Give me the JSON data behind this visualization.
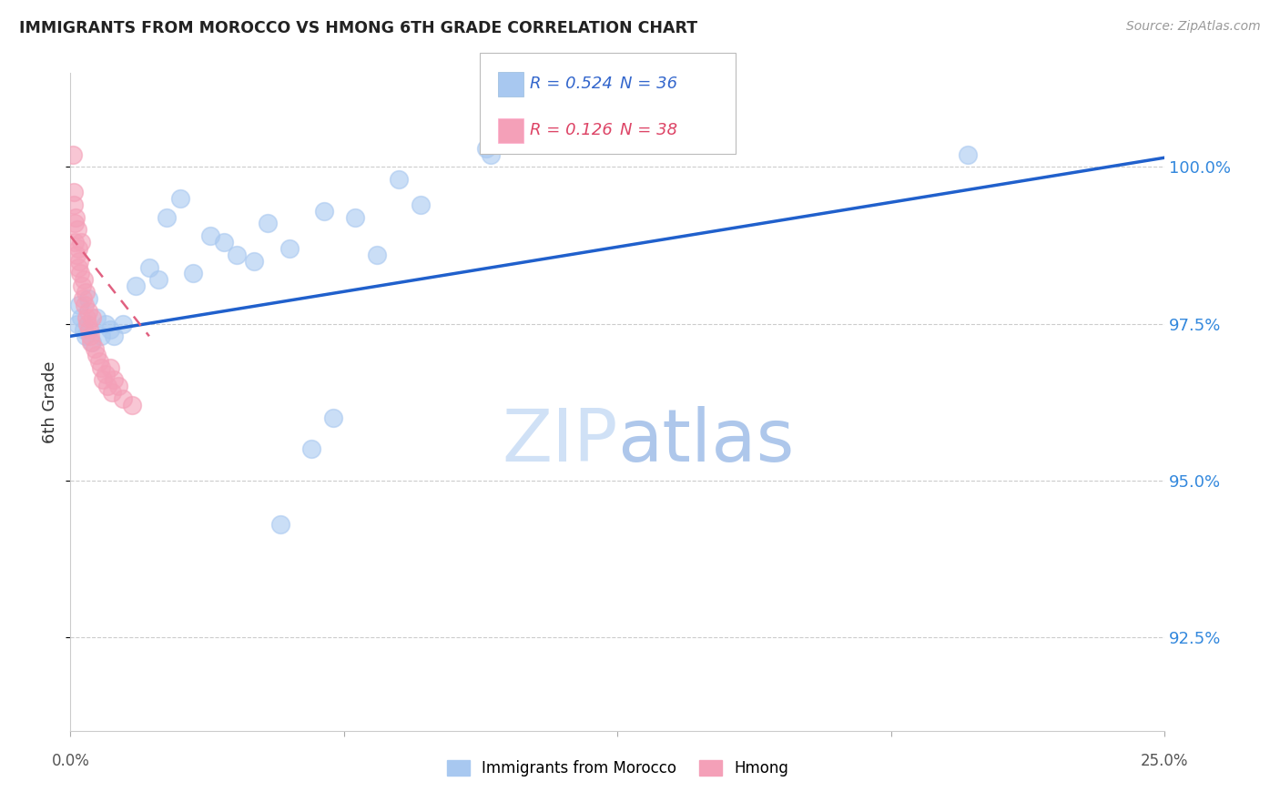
{
  "title": "IMMIGRANTS FROM MOROCCO VS HMONG 6TH GRADE CORRELATION CHART",
  "source": "Source: ZipAtlas.com",
  "ylabel": "6th Grade",
  "xlim": [
    0.0,
    25.0
  ],
  "ylim": [
    91.0,
    101.5
  ],
  "yticks": [
    92.5,
    95.0,
    97.5,
    100.0
  ],
  "ytick_labels": [
    "92.5%",
    "95.0%",
    "97.5%",
    "100.0%"
  ],
  "R_morocco": 0.524,
  "N_morocco": 36,
  "R_hmong": 0.126,
  "N_hmong": 38,
  "color_morocco": "#A8C8F0",
  "color_hmong": "#F4A0B8",
  "color_trend_morocco": "#2060CC",
  "color_trend_hmong": "#E06080",
  "watermark_zip": "ZIP",
  "watermark_atlas": "atlas",
  "morocco_x": [
    0.15,
    0.2,
    0.25,
    0.3,
    0.35,
    0.4,
    0.5,
    0.6,
    0.7,
    0.8,
    0.9,
    1.0,
    1.2,
    1.5,
    1.8,
    2.0,
    2.2,
    2.5,
    2.8,
    3.2,
    3.5,
    3.8,
    4.2,
    4.5,
    4.8,
    5.0,
    5.5,
    5.8,
    6.0,
    6.5,
    7.0,
    7.5,
    8.0,
    9.5,
    9.6,
    20.5
  ],
  "morocco_y": [
    97.5,
    97.8,
    97.6,
    97.4,
    97.3,
    97.9,
    97.2,
    97.6,
    97.3,
    97.5,
    97.4,
    97.3,
    97.5,
    98.1,
    98.4,
    98.2,
    99.2,
    99.5,
    98.3,
    98.9,
    98.8,
    98.6,
    98.5,
    99.1,
    94.3,
    98.7,
    95.5,
    99.3,
    96.0,
    99.2,
    98.6,
    99.8,
    99.4,
    100.3,
    100.2,
    100.2
  ],
  "hmong_x": [
    0.05,
    0.07,
    0.08,
    0.1,
    0.1,
    0.12,
    0.13,
    0.15,
    0.17,
    0.18,
    0.2,
    0.22,
    0.25,
    0.27,
    0.28,
    0.3,
    0.32,
    0.35,
    0.37,
    0.38,
    0.4,
    0.42,
    0.45,
    0.48,
    0.5,
    0.55,
    0.6,
    0.65,
    0.7,
    0.75,
    0.8,
    0.85,
    0.9,
    0.95,
    1.0,
    1.1,
    1.2,
    1.4
  ],
  "hmong_y": [
    100.2,
    99.4,
    99.6,
    99.1,
    98.8,
    99.2,
    98.6,
    99.0,
    98.4,
    98.7,
    98.5,
    98.3,
    98.8,
    98.1,
    97.9,
    98.2,
    97.8,
    98.0,
    97.6,
    97.5,
    97.7,
    97.4,
    97.3,
    97.2,
    97.6,
    97.1,
    97.0,
    96.9,
    96.8,
    96.6,
    96.7,
    96.5,
    96.8,
    96.4,
    96.6,
    96.5,
    96.3,
    96.2
  ],
  "morocco_trend_x": [
    0.0,
    25.0
  ],
  "morocco_trend_y": [
    97.3,
    100.15
  ],
  "hmong_trend_x": [
    0.0,
    1.8
  ],
  "hmong_trend_y": [
    98.9,
    97.3
  ]
}
